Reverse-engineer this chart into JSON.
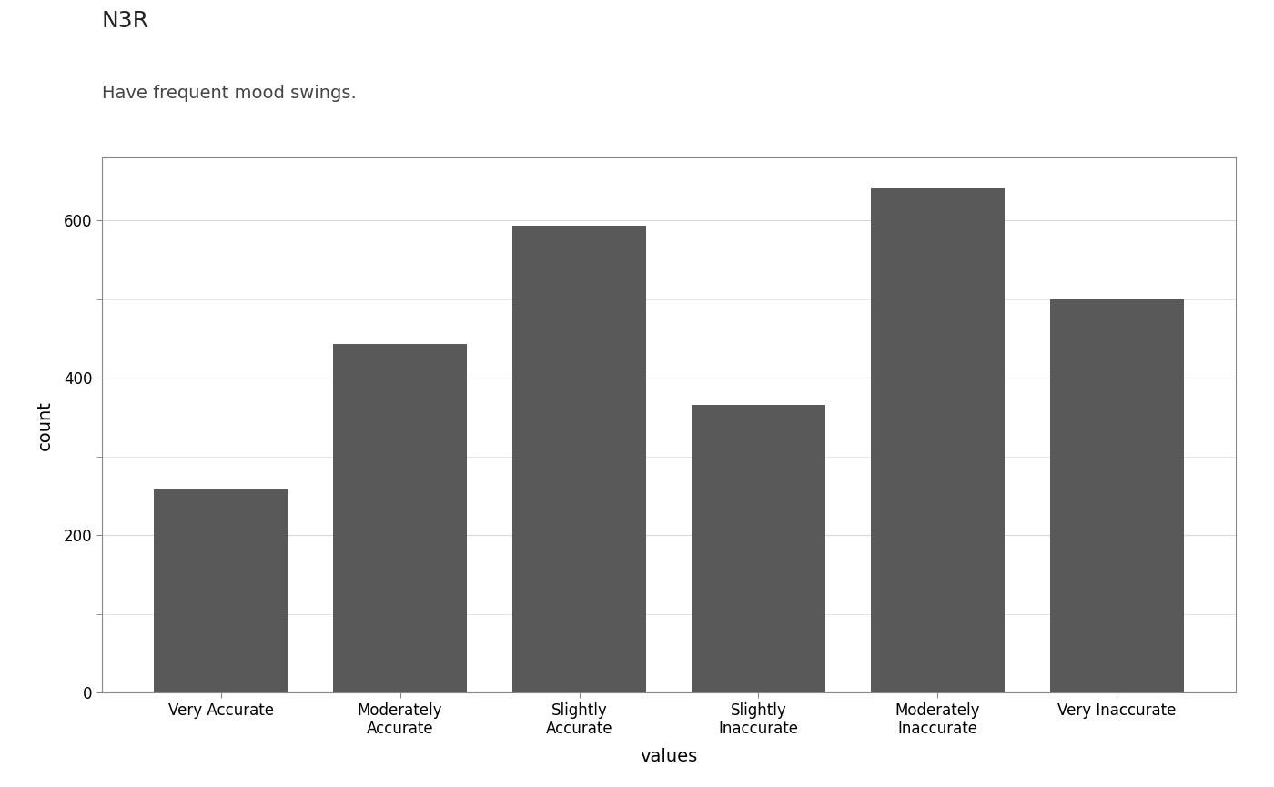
{
  "title": "N3R",
  "subtitle": "Have frequent mood swings.",
  "categories": [
    "Very Accurate",
    "Moderately\nAccurate",
    "Slightly\nAccurate",
    "Slightly\nInaccurate",
    "Moderately\nInaccurate",
    "Very Inaccurate"
  ],
  "values": [
    258,
    443,
    593,
    365,
    641,
    500
  ],
  "bar_color": "#595959",
  "xlabel": "values",
  "ylabel": "count",
  "ylim": [
    0,
    680
  ],
  "yticks": [
    0,
    200,
    400,
    600
  ],
  "background_color": "#ffffff",
  "panel_background": "#ffffff",
  "grid_color": "#d9d9d9",
  "title_fontsize": 18,
  "subtitle_fontsize": 14,
  "axis_label_fontsize": 14,
  "tick_fontsize": 12,
  "spine_color": "#888888"
}
